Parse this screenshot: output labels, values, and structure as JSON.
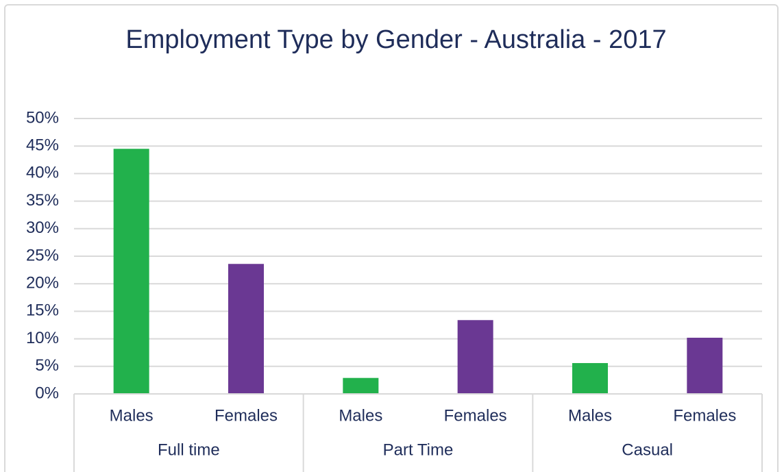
{
  "chart_data": {
    "type": "bar",
    "title": "Employment Type by Gender - Australia - 2017",
    "categories": [
      "Males",
      "Females",
      "Males",
      "Females",
      "Males",
      "Females"
    ],
    "groups": [
      "Full time",
      "Part Time",
      "Casual"
    ],
    "values": [
      44.5,
      23.6,
      2.9,
      13.4,
      5.6,
      10.2
    ],
    "colors": [
      "#22b14c",
      "#6a3893",
      "#22b14c",
      "#6a3893",
      "#22b14c",
      "#6a3893"
    ],
    "ylim": [
      0,
      50
    ],
    "yticks": [
      {
        "value": 0,
        "label": "0%"
      },
      {
        "value": 5,
        "label": "5%"
      },
      {
        "value": 10,
        "label": "10%"
      },
      {
        "value": 15,
        "label": "15%"
      },
      {
        "value": 20,
        "label": "20%"
      },
      {
        "value": 25,
        "label": "25%"
      },
      {
        "value": 30,
        "label": "30%"
      },
      {
        "value": 35,
        "label": "35%"
      },
      {
        "value": 40,
        "label": "40%"
      },
      {
        "value": 45,
        "label": "45%"
      },
      {
        "value": 50,
        "label": "50%"
      }
    ],
    "grid": true
  }
}
